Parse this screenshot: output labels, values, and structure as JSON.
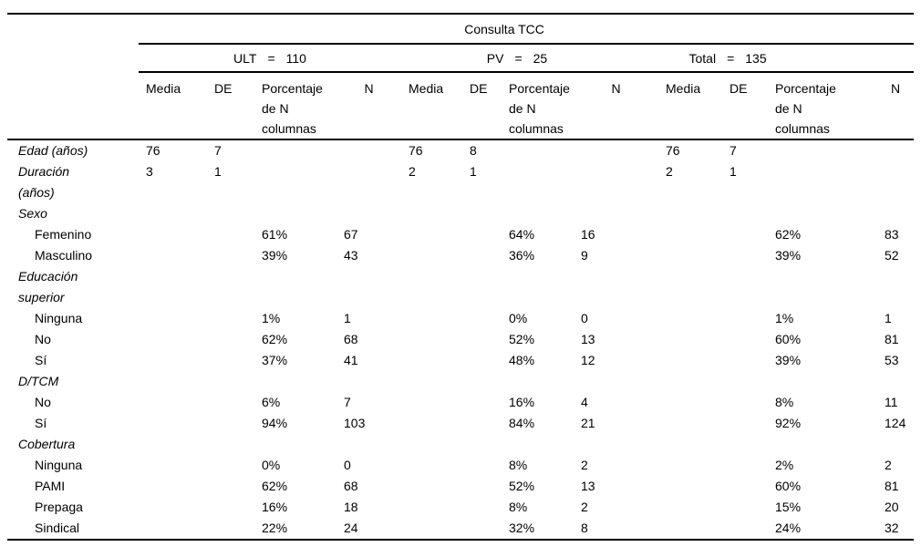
{
  "table": {
    "title": "Consulta TCC",
    "groups": [
      {
        "name": "ULT",
        "eq": "=",
        "count": "110"
      },
      {
        "name": "PV",
        "eq": "=",
        "count": "25"
      },
      {
        "name": "Total",
        "eq": "=",
        "count": "135"
      }
    ],
    "columns": [
      "Media",
      "DE",
      "Porcentaje de N columnas",
      "N"
    ],
    "rows": [
      {
        "label": "Edad (años)",
        "style": "variable",
        "cells": [
          "76",
          "7",
          "",
          "",
          "76",
          "8",
          "",
          "",
          "76",
          "7",
          "",
          ""
        ]
      },
      {
        "label": "Duración\n(años)",
        "style": "variable",
        "cells": [
          "3",
          "1",
          "",
          "",
          "2",
          "1",
          "",
          "",
          "2",
          "1",
          "",
          ""
        ]
      },
      {
        "label": "Sexo",
        "style": "variable",
        "cells": [
          "",
          "",
          "",
          "",
          "",
          "",
          "",
          "",
          "",
          "",
          "",
          ""
        ]
      },
      {
        "label": "Femenino",
        "style": "level",
        "cells": [
          "",
          "",
          "61%",
          "67",
          "",
          "",
          "64%",
          "16",
          "",
          "",
          "62%",
          "83"
        ]
      },
      {
        "label": "Masculino",
        "style": "level",
        "cells": [
          "",
          "",
          "39%",
          "43",
          "",
          "",
          "36%",
          "9",
          "",
          "",
          "39%",
          "52"
        ]
      },
      {
        "label": "Educación\nsuperior",
        "style": "variable",
        "cells": [
          "",
          "",
          "",
          "",
          "",
          "",
          "",
          "",
          "",
          "",
          "",
          ""
        ]
      },
      {
        "label": "Ninguna",
        "style": "level",
        "cells": [
          "",
          "",
          "1%",
          "1",
          "",
          "",
          "0%",
          "0",
          "",
          "",
          "1%",
          "1"
        ]
      },
      {
        "label": "No",
        "style": "level",
        "cells": [
          "",
          "",
          "62%",
          "68",
          "",
          "",
          "52%",
          "13",
          "",
          "",
          "60%",
          "81"
        ]
      },
      {
        "label": "Sí",
        "style": "level",
        "cells": [
          "",
          "",
          "37%",
          "41",
          "",
          "",
          "48%",
          "12",
          "",
          "",
          "39%",
          "53"
        ]
      },
      {
        "label": "D/TCM",
        "style": "variable",
        "cells": [
          "",
          "",
          "",
          "",
          "",
          "",
          "",
          "",
          "",
          "",
          "",
          ""
        ]
      },
      {
        "label": "No",
        "style": "level",
        "cells": [
          "",
          "",
          "6%",
          "7",
          "",
          "",
          "16%",
          "4",
          "",
          "",
          "8%",
          "11"
        ]
      },
      {
        "label": "Sí",
        "style": "level",
        "cells": [
          "",
          "",
          "94%",
          "103",
          "",
          "",
          "84%",
          "21",
          "",
          "",
          "92%",
          "124"
        ]
      },
      {
        "label": "Cobertura",
        "style": "variable",
        "cells": [
          "",
          "",
          "",
          "",
          "",
          "",
          "",
          "",
          "",
          "",
          "",
          ""
        ]
      },
      {
        "label": "Ninguna",
        "style": "level",
        "cells": [
          "",
          "",
          "0%",
          "0",
          "",
          "",
          "8%",
          "2",
          "",
          "",
          "2%",
          "2"
        ]
      },
      {
        "label": "PAMI",
        "style": "level",
        "cells": [
          "",
          "",
          "62%",
          "68",
          "",
          "",
          "52%",
          "13",
          "",
          "",
          "60%",
          "81"
        ]
      },
      {
        "label": "Prepaga",
        "style": "level",
        "cells": [
          "",
          "",
          "16%",
          "18",
          "",
          "",
          "8%",
          "2",
          "",
          "",
          "15%",
          "20"
        ]
      },
      {
        "label": "Sindical",
        "style": "level",
        "cells": [
          "",
          "",
          "22%",
          "24",
          "",
          "",
          "32%",
          "8",
          "",
          "",
          "24%",
          "32"
        ]
      }
    ]
  }
}
